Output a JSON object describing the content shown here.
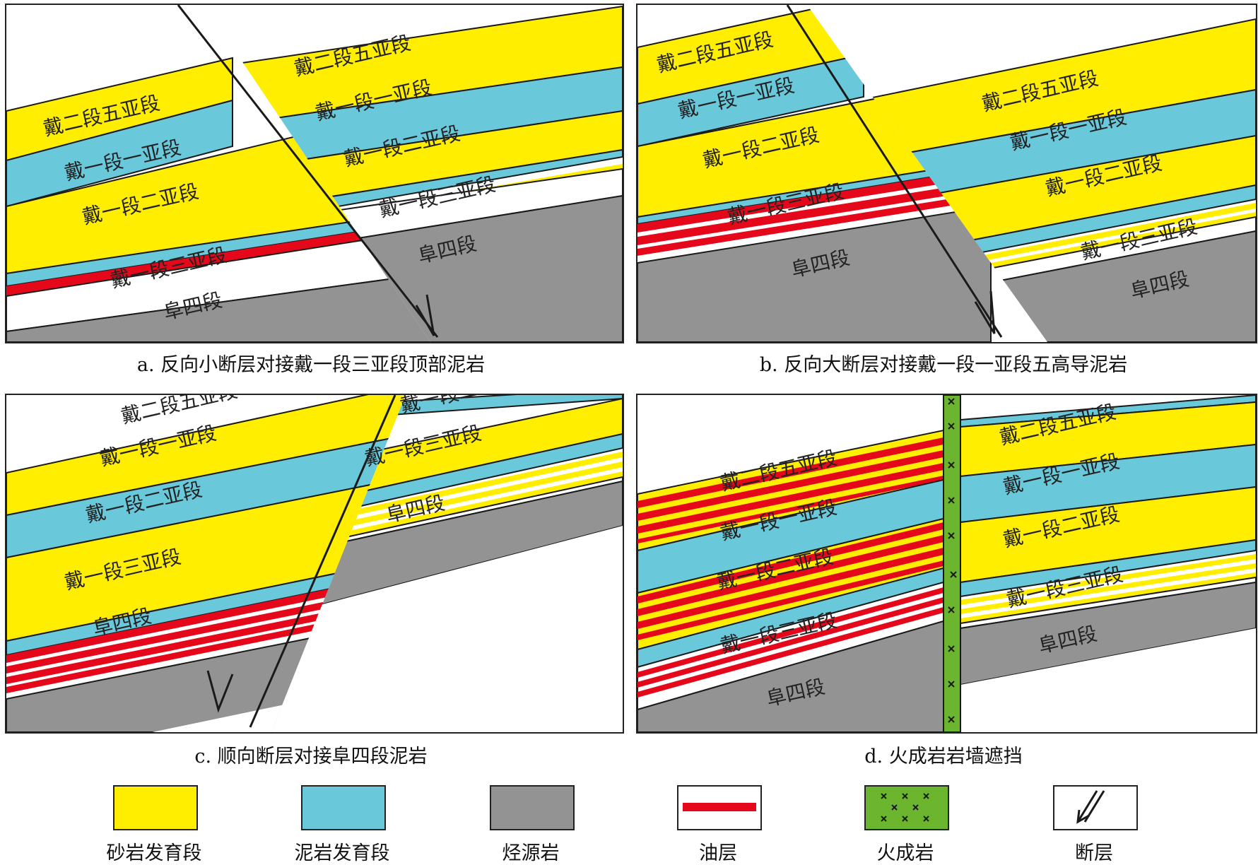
{
  "colors": {
    "sandstone": "#ffee00",
    "mudstone": "#69c8da",
    "source_rock": "#939393",
    "oil": "#e5081b",
    "igneous": "#6bb62e",
    "line": "#1a1a1a"
  },
  "units": {
    "d2_5": "戴二段五亚段",
    "d1_1": "戴一段一亚段",
    "d1_2": "戴一段二亚段",
    "d1_3": "戴一段三亚段",
    "f4": "阜四段"
  },
  "captions": {
    "a": "a. 反向小断层对接戴一段三亚段顶部泥岩",
    "b": "b. 反向大断层对接戴一段一亚段五高导泥岩",
    "c": "c. 顺向断层对接阜四段泥岩",
    "d": "d. 火成岩岩墙遮挡"
  },
  "legend": [
    {
      "label": "砂岩发育段",
      "icon": "sandstone-swatch"
    },
    {
      "label": "泥岩发育段",
      "icon": "mudstone-swatch"
    },
    {
      "label": "烃源岩",
      "icon": "source-rock-swatch"
    },
    {
      "label": "油层",
      "icon": "oil-layer-swatch"
    },
    {
      "label": "火成岩",
      "icon": "igneous-rock-swatch"
    },
    {
      "label": "断层",
      "icon": "fault-icon"
    }
  ]
}
